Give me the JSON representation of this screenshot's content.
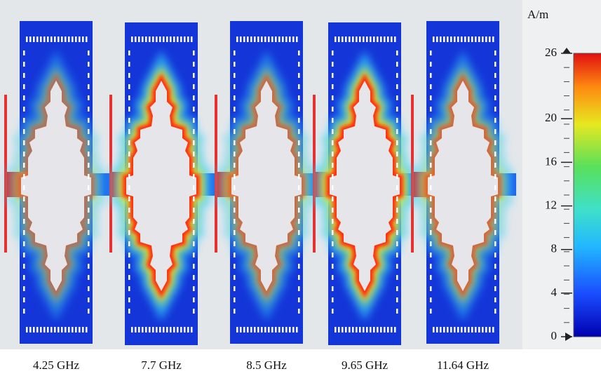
{
  "panels": [
    {
      "label": "4.25 GHz"
    },
    {
      "label": "7.7 GHz"
    },
    {
      "label": "8.5 GHz"
    },
    {
      "label": "9.65 GHz"
    },
    {
      "label": "11.64 GHz"
    }
  ],
  "colorbar": {
    "unit": "A/m",
    "range": [
      0,
      26
    ],
    "ticks": [
      0,
      4,
      8,
      12,
      16,
      20,
      26
    ]
  }
}
